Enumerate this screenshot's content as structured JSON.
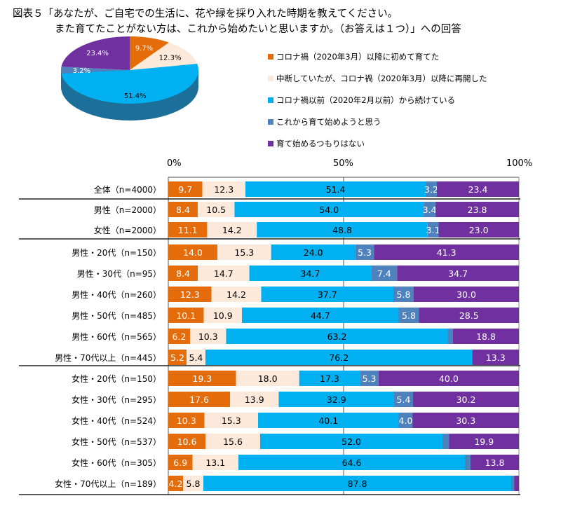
{
  "title": {
    "line1": "図表５「あなたが、ご自宅での生活に、花や緑を採り入れた時期を教えてください。",
    "line2": "また育てたことがない方は、これから始めたいと思いますか。（お答えは１つ）」への回答"
  },
  "chart_data": [
    {
      "type": "pie",
      "style": "3d",
      "categories": [
        "コロナ禍（2020年3月）以降に初めて育てた",
        "中断していたが、コロナ禍（2020年3月）以降に再開した",
        "コロナ禍以前（2020年2月以前）から続けている",
        "これから育て始めようと思う",
        "育て始めるつもりはない"
      ],
      "values": [
        9.7,
        12.3,
        51.4,
        3.2,
        23.4
      ],
      "labels": [
        "9.7%",
        "12.3%",
        "51.4%",
        "3.2%",
        "23.4%"
      ],
      "colors": [
        "#e46c0a",
        "#fde9d9",
        "#00b0f0",
        "#4f81bd",
        "#7030a0"
      ],
      "legend_position": "right"
    },
    {
      "type": "bar",
      "orientation": "horizontal",
      "stacked": "100%",
      "x_ticks": [
        "0%",
        "50%",
        "100%"
      ],
      "xlim": [
        0,
        100
      ],
      "grid": "50% line",
      "categories": [
        "全体（n=4000）",
        "男性（n=2000）",
        "女性（n=2000）",
        "男性・20代（n=150）",
        "男性・30代（n=95）",
        "男性・40代（n=260）",
        "男性・50代（n=485）",
        "男性・60代（n=565）",
        "男性・70代以上（n=445）",
        "女性・20代（n=150）",
        "女性・30代（n=295）",
        "女性・40代（n=524）",
        "女性・50代（n=537）",
        "女性・60代（n=305）",
        "女性・70代以上（n=189）"
      ],
      "series": [
        {
          "name": "コロナ禍（2020年3月）以降に初めて育てた",
          "color": "#e46c0a",
          "text_color": "#ffffff",
          "values": [
            9.7,
            8.4,
            11.1,
            14.0,
            8.4,
            12.3,
            10.1,
            6.2,
            5.2,
            19.3,
            17.6,
            10.3,
            10.6,
            6.9,
            4.2
          ],
          "labels": [
            "9.7",
            "8.4",
            "11.1",
            "14.0",
            "8.4",
            "12.3",
            "10.1",
            "6.2",
            "5.2",
            "19.3",
            "17.6",
            "10.3",
            "10.6",
            "6.9",
            "4.2"
          ]
        },
        {
          "name": "中断していたが、コロナ禍（2020年3月）以降に再開した",
          "color": "#fde9d9",
          "text_color": "#000000",
          "values": [
            12.3,
            10.5,
            14.2,
            15.3,
            14.7,
            14.2,
            10.9,
            10.3,
            5.4,
            18.0,
            13.9,
            15.3,
            15.6,
            13.1,
            5.8
          ],
          "labels": [
            "12.3",
            "10.5",
            "14.2",
            "15.3",
            "14.7",
            "14.2",
            "10.9",
            "10.3",
            "5.4",
            "18.0",
            "13.9",
            "15.3",
            "15.6",
            "13.1",
            "5.8"
          ]
        },
        {
          "name": "コロナ禍以前（2020年2月以前）から続けている",
          "color": "#00b0f0",
          "text_color": "#000000",
          "values": [
            51.4,
            54.0,
            48.8,
            24.0,
            34.7,
            37.7,
            44.7,
            63.2,
            76.2,
            17.3,
            32.9,
            40.1,
            52.0,
            64.6,
            87.8
          ],
          "labels": [
            "51.4",
            "54.0",
            "48.8",
            "24.0",
            "34.7",
            "37.7",
            "44.7",
            "63.2",
            "76.2",
            "17.3",
            "32.9",
            "40.1",
            "52.0",
            "64.6",
            "87.8"
          ]
        },
        {
          "name": "これから育て始めようと思う",
          "color": "#4f81bd",
          "text_color": "#ffffff",
          "values": [
            3.2,
            3.4,
            3.1,
            5.3,
            7.4,
            5.8,
            5.8,
            1.5,
            0,
            5.3,
            5.4,
            4.0,
            1.9,
            1.6,
            0.9
          ],
          "labels": [
            "3.2",
            "3.4",
            "3.1",
            "5.3",
            "7.4",
            "5.8",
            "5.8",
            "",
            "",
            "5.3",
            "5.4",
            "4.0",
            "",
            "",
            ""
          ]
        },
        {
          "name": "育て始めるつもりはない",
          "color": "#7030a0",
          "text_color": "#ffffff",
          "values": [
            23.4,
            23.8,
            23.0,
            41.3,
            34.7,
            30.0,
            28.5,
            18.8,
            13.3,
            40.0,
            30.2,
            30.3,
            19.9,
            13.8,
            1.3
          ],
          "labels": [
            "23.4",
            "23.8",
            "23.0",
            "41.3",
            "34.7",
            "30.0",
            "28.5",
            "18.8",
            "13.3",
            "40.0",
            "30.2",
            "30.3",
            "19.9",
            "13.8",
            ""
          ]
        }
      ]
    }
  ]
}
